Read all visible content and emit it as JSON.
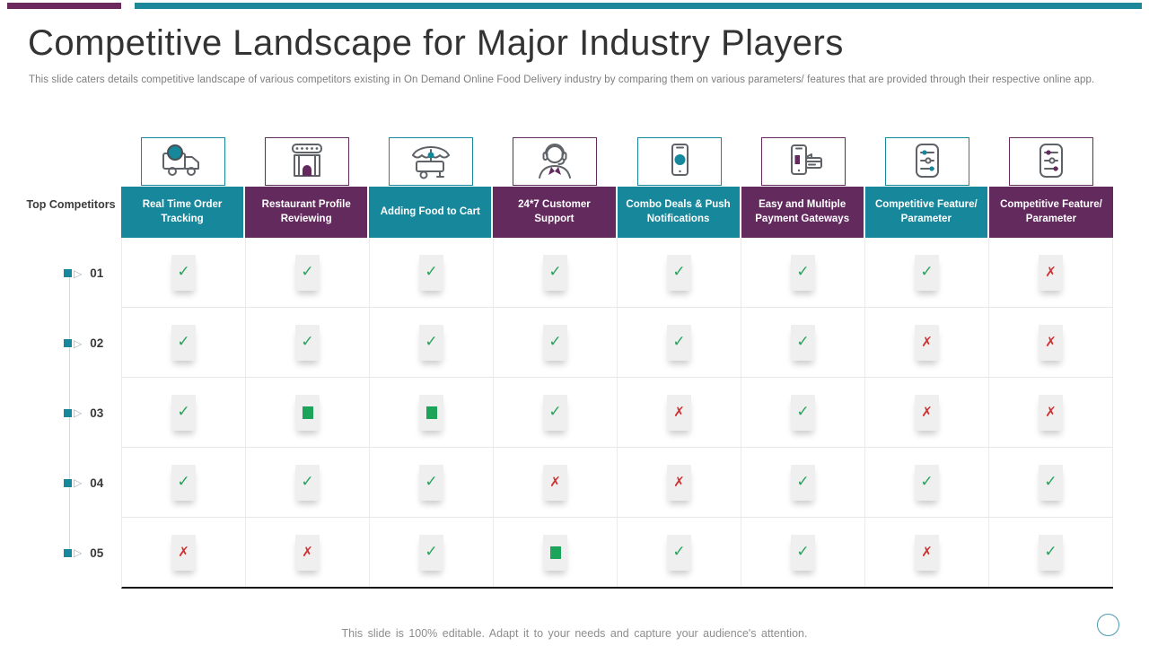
{
  "slide": {
    "title": "Competitive Landscape for Major Industry Players",
    "subtitle": "This slide caters details competitive landscape of various competitors existing in On Demand Online Food Delivery industry by comparing them on various parameters/ features that are provided through their respective online app.",
    "footer_note": "This slide is 100% editable. Adapt it to your needs and capture your audience's attention."
  },
  "colors": {
    "teal": "#17879b",
    "purple": "#632a5e",
    "topbar_teal": "#1d8899",
    "topbar_purple": "#6b2a5b",
    "check_green": "#27a35c",
    "cross_red": "#d32f2f",
    "square_green": "#1ca55a"
  },
  "table": {
    "corner_label": "Top Competitors",
    "columns": [
      {
        "label": "Real Time Order Tracking",
        "theme": "teal",
        "icon": "delivery-truck-icon"
      },
      {
        "label": "Restaurant Profile Reviewing",
        "theme": "purple",
        "icon": "restaurant-icon"
      },
      {
        "label": "Adding Food to Cart",
        "theme": "teal",
        "icon": "food-cart-icon"
      },
      {
        "label": "24*7 Customer Support",
        "theme": "purple",
        "icon": "customer-support-icon"
      },
      {
        "label": "Combo Deals & Push Notifications",
        "theme": "teal",
        "icon": "notification-phone-icon"
      },
      {
        "label": "Easy and Multiple Payment Gateways",
        "theme": "purple",
        "icon": "payment-gateway-icon"
      },
      {
        "label": "Competitive Feature/ Parameter",
        "theme": "teal",
        "icon": "sliders-icon"
      },
      {
        "label": "Competitive Feature/ Parameter",
        "theme": "purple",
        "icon": "sliders-icon"
      }
    ],
    "rows": [
      {
        "label": "01",
        "cells": [
          "check",
          "check",
          "check",
          "check",
          "check",
          "check",
          "check",
          "cross"
        ]
      },
      {
        "label": "02",
        "cells": [
          "check",
          "check",
          "check",
          "check",
          "check",
          "check",
          "cross",
          "cross"
        ]
      },
      {
        "label": "03",
        "cells": [
          "check",
          "square",
          "square",
          "check",
          "cross",
          "check",
          "cross",
          "cross"
        ]
      },
      {
        "label": "04",
        "cells": [
          "check",
          "check",
          "check",
          "cross",
          "cross",
          "check",
          "check",
          "check"
        ]
      },
      {
        "label": "05",
        "cells": [
          "cross",
          "cross",
          "check",
          "square",
          "check",
          "check",
          "cross",
          "check"
        ]
      }
    ]
  }
}
